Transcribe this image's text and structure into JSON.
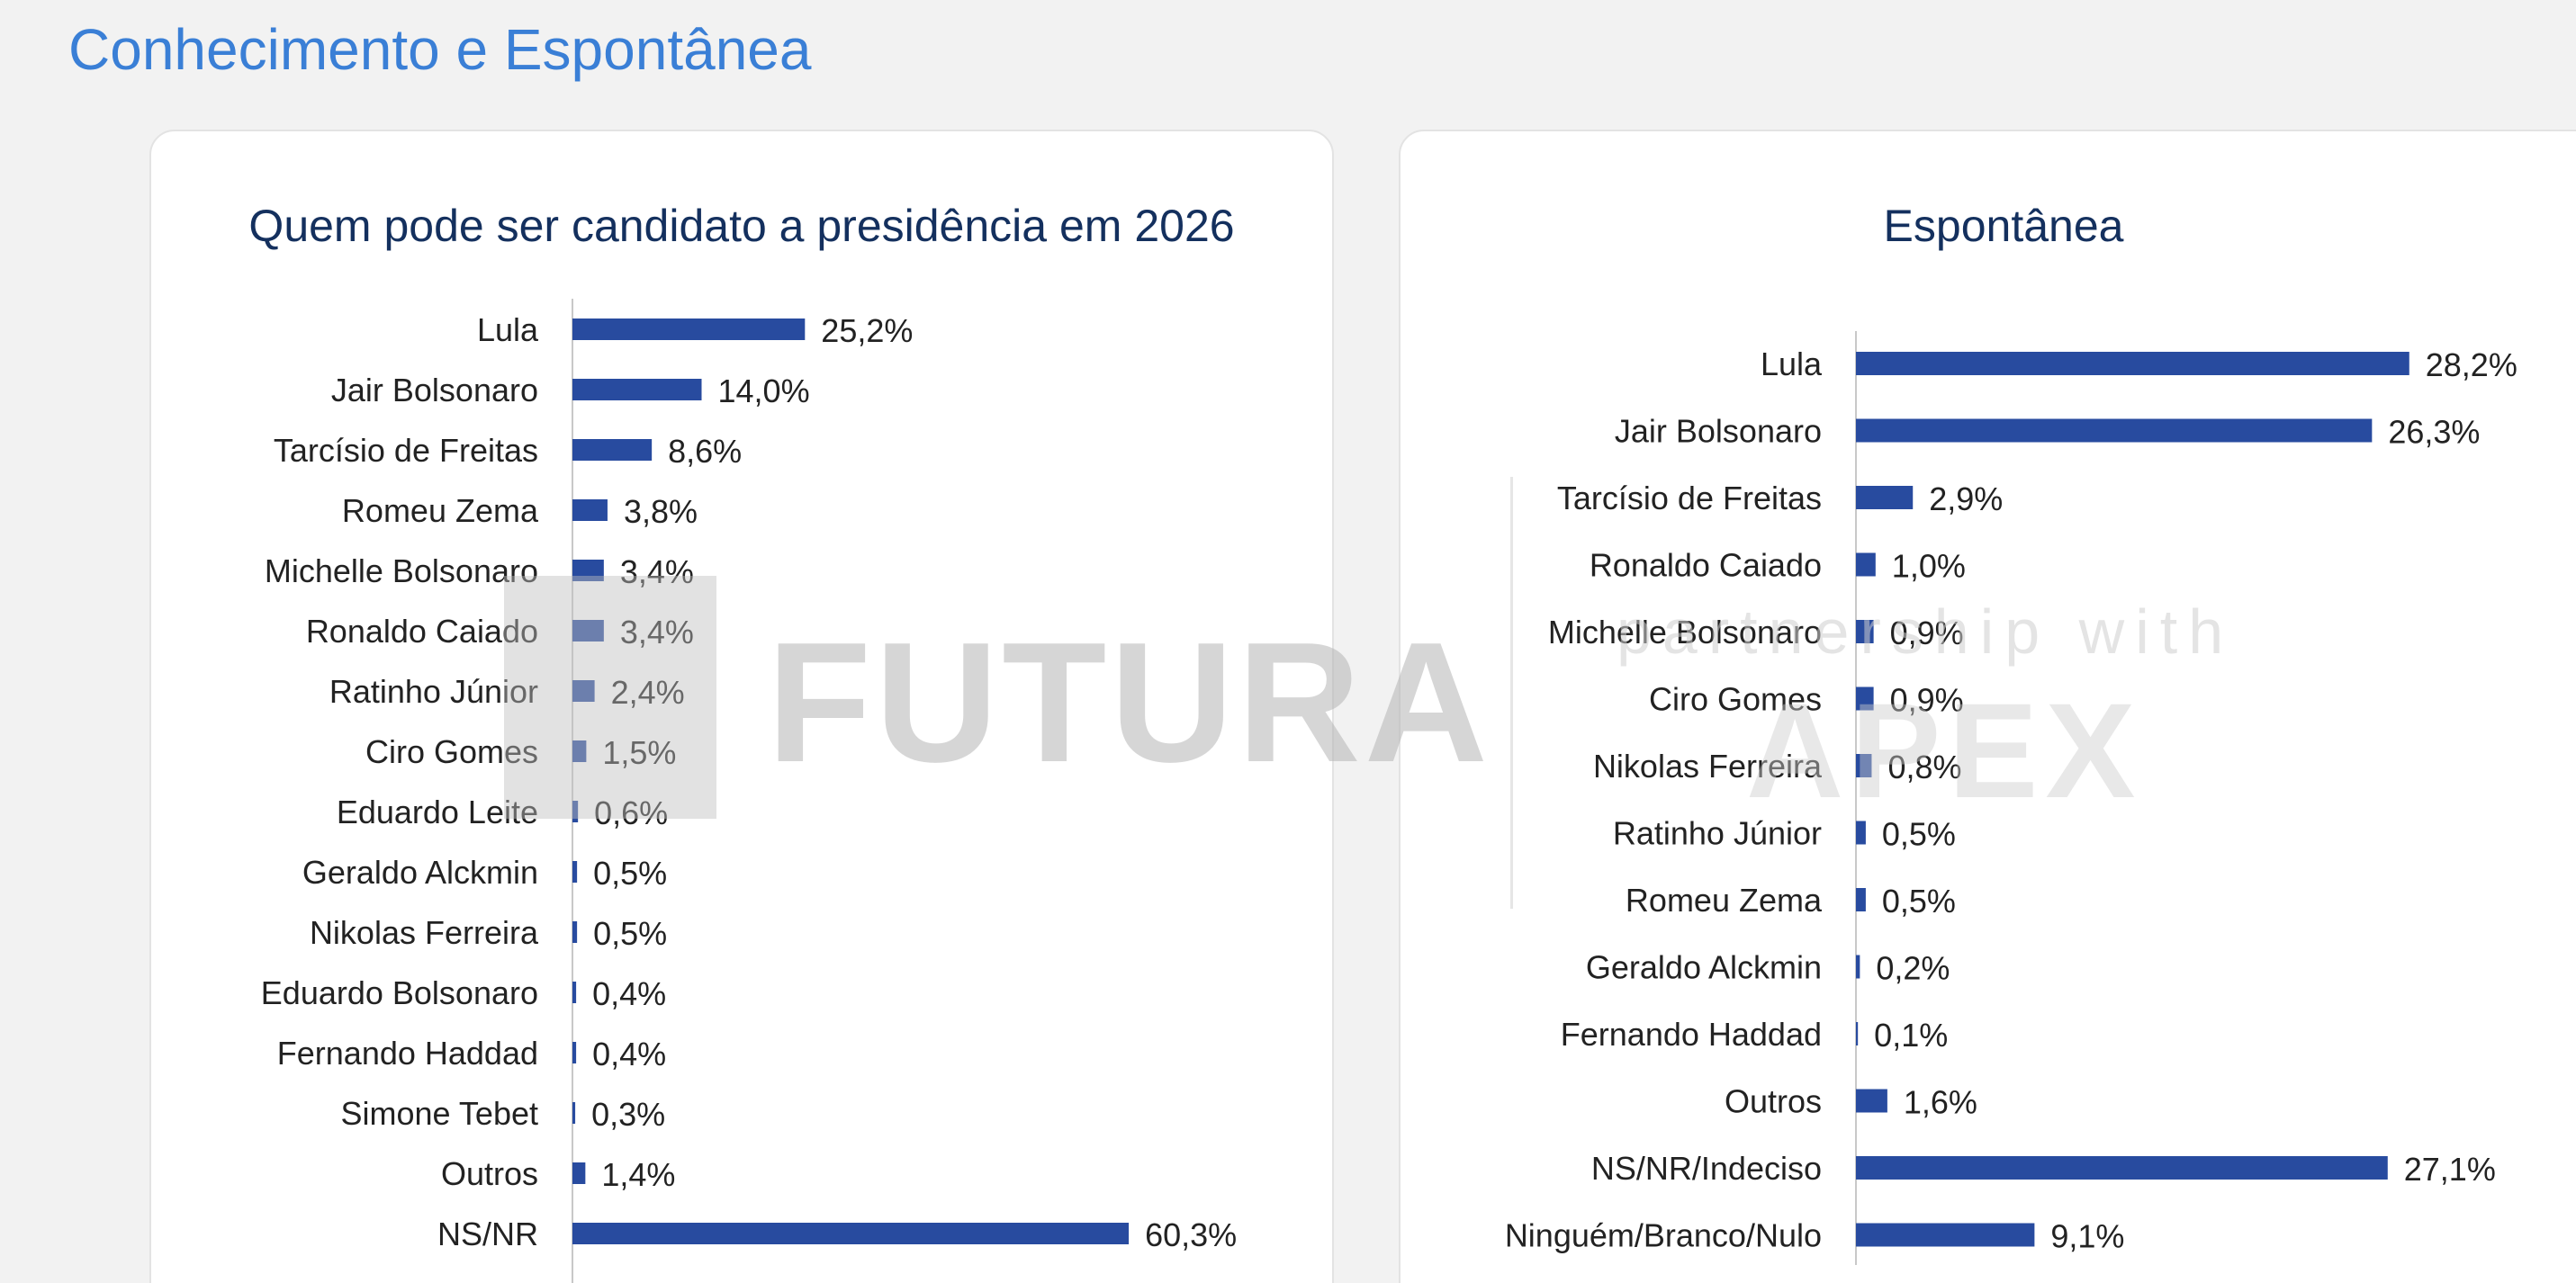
{
  "page": {
    "title": "Conhecimento e Espontânea"
  },
  "watermark": {
    "left_brand": "FUTURA",
    "right_small": "partnership with",
    "right_brand": "APEX"
  },
  "colors": {
    "bar": "#284b9f",
    "title": "#3a7fd6",
    "card_title": "#14305e",
    "label": "#222222"
  },
  "chart_data": [
    {
      "type": "bar",
      "orientation": "horizontal",
      "title": "Quem pode ser candidato a presidência em 2026",
      "categories": [
        "Lula",
        "Jair Bolsonaro",
        "Tarcísio de Freitas",
        "Romeu Zema",
        "Michelle Bolsonaro",
        "Ronaldo Caiado",
        "Ratinho Júnior",
        "Ciro Gomes",
        "Eduardo Leite",
        "Geraldo Alckmin",
        "Nikolas Ferreira",
        "Eduardo Bolsonaro",
        "Fernando Haddad",
        "Simone Tebet",
        "Outros",
        "NS/NR"
      ],
      "values": [
        25.2,
        14.0,
        8.6,
        3.8,
        3.4,
        3.4,
        2.4,
        1.5,
        0.6,
        0.5,
        0.5,
        0.4,
        0.4,
        0.3,
        1.4,
        60.3
      ],
      "labels": [
        "25,2%",
        "14,0%",
        "8,6%",
        "3,8%",
        "3,4%",
        "3,4%",
        "2,4%",
        "1,5%",
        "0,6%",
        "0,5%",
        "0,5%",
        "0,4%",
        "0,4%",
        "0,3%",
        "1,4%",
        "60,3%"
      ],
      "unit": "%",
      "grid": false,
      "legend": "none"
    },
    {
      "type": "bar",
      "orientation": "horizontal",
      "title": "Espontânea",
      "categories": [
        "Lula",
        "Jair Bolsonaro",
        "Tarcísio de Freitas",
        "Ronaldo Caiado",
        "Michelle Bolsonaro",
        "Ciro Gomes",
        "Nikolas Ferreira",
        "Ratinho Júnior",
        "Romeu Zema",
        "Geraldo Alckmin",
        "Fernando Haddad",
        "Outros",
        "NS/NR/Indeciso",
        "Ninguém/Branco/Nulo"
      ],
      "values": [
        28.2,
        26.3,
        2.9,
        1.0,
        0.9,
        0.9,
        0.8,
        0.5,
        0.5,
        0.2,
        0.1,
        1.6,
        27.1,
        9.1
      ],
      "labels": [
        "28,2%",
        "26,3%",
        "2,9%",
        "1,0%",
        "0,9%",
        "0,9%",
        "0,8%",
        "0,5%",
        "0,5%",
        "0,2%",
        "0,1%",
        "1,6%",
        "27,1%",
        "9,1%"
      ],
      "unit": "%",
      "grid": false,
      "legend": "none"
    }
  ]
}
